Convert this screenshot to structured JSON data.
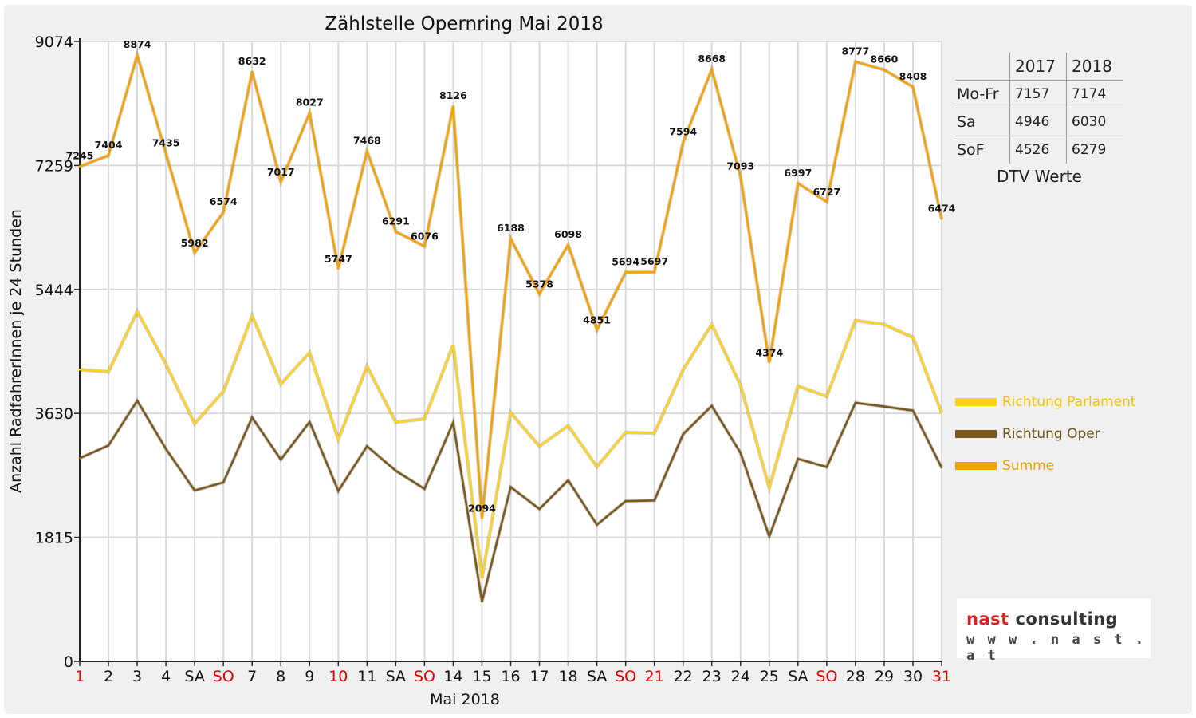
{
  "chart_data": {
    "type": "line",
    "title": "Zählstelle Opernring Mai 2018",
    "xlabel": "Mai 2018",
    "ylabel": "Anzahl RadfahrerInnen je 24 Stunden",
    "ylim": [
      0,
      9074
    ],
    "yticks": [
      "0",
      "1815",
      "3630",
      "5444",
      "7259",
      "9074"
    ],
    "categories": [
      "1",
      "2",
      "3",
      "4",
      "SA",
      "SO",
      "7",
      "8",
      "9",
      "10",
      "11",
      "SA",
      "SO",
      "14",
      "15",
      "16",
      "17",
      "18",
      "SA",
      "SO",
      "21",
      "22",
      "23",
      "24",
      "25",
      "SA",
      "SO",
      "28",
      "29",
      "30",
      "31"
    ],
    "red_categories": [
      0,
      5,
      9,
      12,
      19,
      20,
      26,
      30
    ],
    "grid": true,
    "legend_position": "right",
    "series": [
      {
        "name": "Richtung Parlament",
        "color": "#ffd21e",
        "values": [
          4270,
          4240,
          5120,
          4350,
          3480,
          3950,
          5060,
          4060,
          4520,
          3250,
          4320,
          3500,
          3550,
          4630,
          1220,
          3640,
          3150,
          3450,
          2850,
          3350,
          3340,
          4270,
          4930,
          4040,
          2540,
          4030,
          3880,
          4990,
          4930,
          4740,
          3640
        ]
      },
      {
        "name": "Richtung Oper",
        "color": "#7a5a1e",
        "values": [
          2975,
          3160,
          3815,
          3110,
          2500,
          2620,
          3570,
          2955,
          3505,
          2495,
          3150,
          2790,
          2525,
          3495,
          875,
          2550,
          2230,
          2650,
          2000,
          2345,
          2355,
          3325,
          3740,
          3050,
          1830,
          2965,
          2845,
          3785,
          3730,
          3670,
          2835
        ]
      },
      {
        "name": "Summe",
        "color": "#f5a300",
        "values": [
          7245,
          7404,
          8874,
          7435,
          5982,
          6574,
          8632,
          7017,
          8027,
          5747,
          7468,
          6291,
          6076,
          8126,
          2094,
          6188,
          5378,
          6098,
          4851,
          5694,
          5697,
          7594,
          8668,
          7093,
          4374,
          6997,
          6727,
          8777,
          8660,
          8408,
          6474
        ],
        "labels": [
          "7245",
          "7404",
          "8874",
          "7435",
          "5982",
          "6574",
          "8632",
          "7017",
          "8027",
          "5747",
          "7468",
          "6291",
          "6076",
          "8126",
          "2094",
          "6188",
          "5378",
          "6098",
          "4851",
          "5694",
          "5697",
          "7594",
          "8668",
          "7093",
          "4374",
          "6997",
          "6727",
          "8777",
          "8660",
          "8408",
          "6474"
        ]
      }
    ]
  },
  "dtv_table": {
    "header": [
      "",
      "2017",
      "2018"
    ],
    "rows": [
      {
        "label": "Mo-Fr",
        "v2017": "7157",
        "v2018": "7174"
      },
      {
        "label": "Sa",
        "v2017": "4946",
        "v2018": "6030"
      },
      {
        "label": "SoF",
        "v2017": "4526",
        "v2018": "6279"
      }
    ],
    "caption": "DTV Werte"
  },
  "logo": {
    "brand_a": "nast",
    "brand_b": " consulting",
    "url": "w w w . n a s t . a t"
  }
}
